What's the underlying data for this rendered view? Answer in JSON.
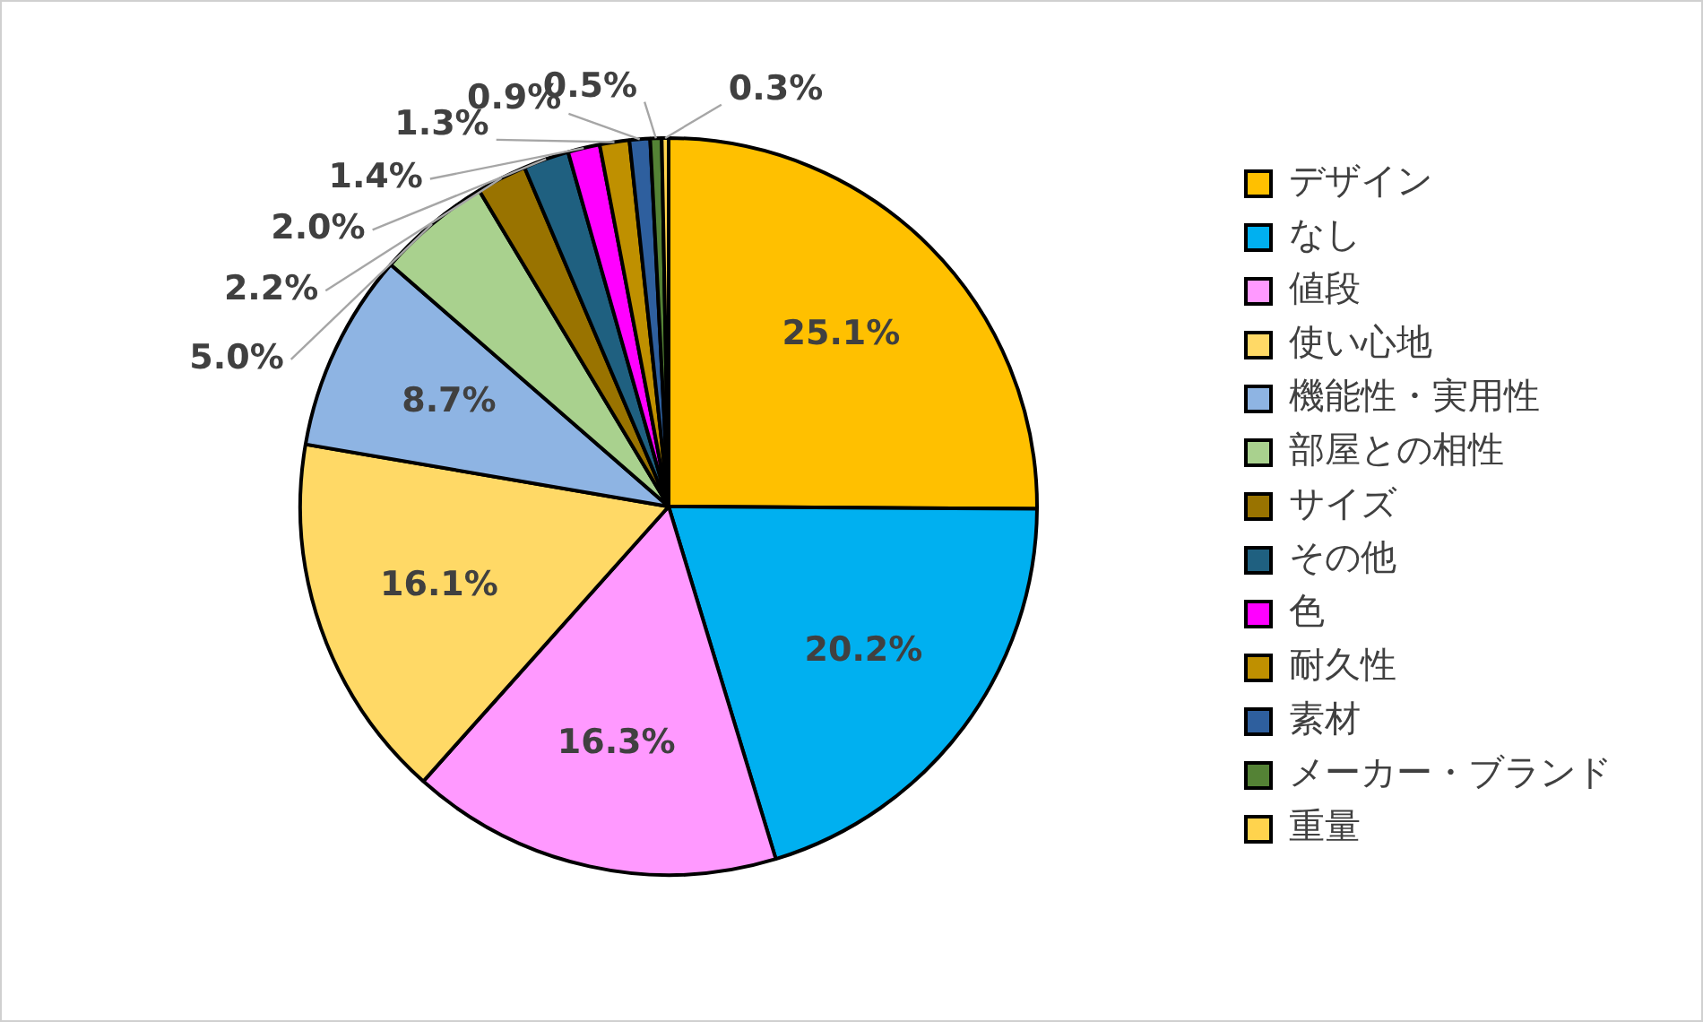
{
  "chart_data": {
    "type": "pie",
    "categories": [
      "デザイン",
      "なし",
      "値段",
      "使い心地",
      "機能性・実用性",
      "部屋との相性",
      "サイズ",
      "その他",
      "色",
      "耐久性",
      "素材",
      "メーカー・ブランド",
      "重量"
    ],
    "values": [
      25.1,
      20.2,
      16.3,
      16.1,
      8.7,
      5.0,
      2.2,
      2.0,
      1.4,
      1.3,
      0.9,
      0.5,
      0.3
    ],
    "value_labels": [
      "25.1%",
      "20.2%",
      "16.3%",
      "16.1%",
      "8.7%",
      "5.0%",
      "2.2%",
      "2.0%",
      "1.4%",
      "1.3%",
      "0.9%",
      "0.5%",
      "0.3%"
    ],
    "colors": [
      "#ffc000",
      "#00b0f0",
      "#ff99ff",
      "#ffd966",
      "#8eb4e3",
      "#a9d18e",
      "#997300",
      "#1f6080",
      "#ff00ff",
      "#bf9000",
      "#2e5f9e",
      "#548235",
      "#ffd34d"
    ],
    "legend": "right"
  }
}
